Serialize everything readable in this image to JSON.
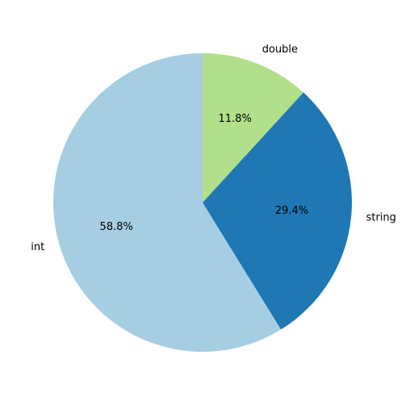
{
  "chart_data": {
    "type": "pie",
    "categories": [
      "int",
      "string",
      "double"
    ],
    "values": [
      58.8,
      29.4,
      11.8
    ],
    "percent_labels": [
      "58.8%",
      "29.4%",
      "11.8%"
    ],
    "colors": [
      "#a6cee3",
      "#1f78b4",
      "#b2df8a"
    ],
    "title": "",
    "start_angle_deg": 90,
    "direction": "counterclockwise",
    "legend": "none"
  }
}
